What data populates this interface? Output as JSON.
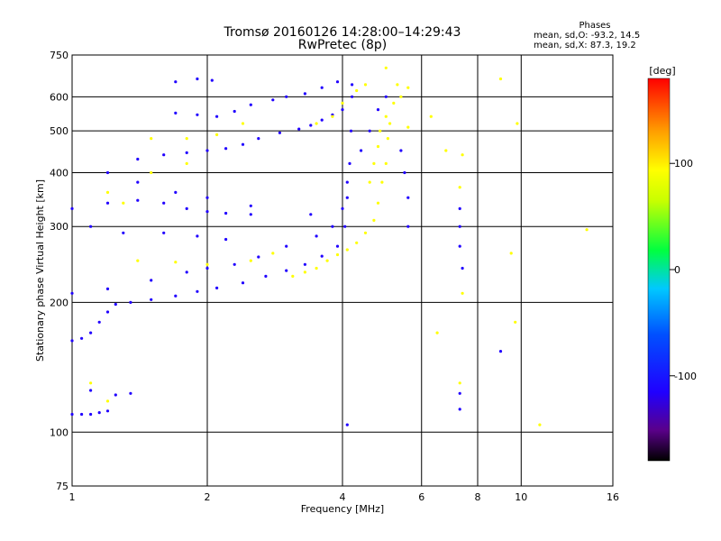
{
  "chart_data": {
    "type": "scatter",
    "title_line1": "Tromsø 20160126 14:28:00–14:29:43",
    "title_line2": "RwPretec (8p)",
    "xlabel": "Frequency [MHz]",
    "ylabel": "Stationary phase Virtual Height [km]",
    "x_scale": "log",
    "y_scale": "log",
    "xlim": [
      1,
      16
    ],
    "ylim": [
      75,
      750
    ],
    "x_ticks": [
      1,
      2,
      4,
      6,
      8,
      10,
      16
    ],
    "y_ticks": [
      75,
      100,
      200,
      300,
      400,
      500,
      600,
      750
    ],
    "grid": true,
    "phases_box": {
      "title": "Phases",
      "line_o": "mean, sd,O: -93.2, 14.5",
      "line_x": "mean, sd,X: 87.3, 19.2"
    },
    "colorbar": {
      "label": "[deg]",
      "range": [
        -180,
        180
      ],
      "ticks": [
        100,
        0,
        -100
      ],
      "colors": [
        "#000000",
        "#5a008a",
        "#2000ff",
        "#0050ff",
        "#00c8ff",
        "#00ff40",
        "#c8ff00",
        "#ffff00",
        "#ffa000",
        "#ff0000"
      ]
    },
    "series": [
      {
        "mode": "O",
        "phase": -100,
        "points": [
          [
            1.0,
            163
          ],
          [
            1.05,
            165
          ],
          [
            1.1,
            170
          ],
          [
            1.15,
            180
          ],
          [
            1.2,
            190
          ],
          [
            1.25,
            198
          ],
          [
            1.35,
            200
          ],
          [
            1.5,
            203
          ],
          [
            1.7,
            207
          ],
          [
            1.9,
            212
          ],
          [
            2.1,
            216
          ],
          [
            2.4,
            222
          ],
          [
            2.7,
            230
          ],
          [
            3.0,
            237
          ],
          [
            3.3,
            245
          ],
          [
            3.6,
            256
          ],
          [
            3.9,
            270
          ],
          [
            4.05,
            300
          ],
          [
            4.1,
            350
          ],
          [
            4.15,
            420
          ],
          [
            4.18,
            500
          ],
          [
            4.2,
            600
          ],
          [
            1.0,
            110
          ],
          [
            1.05,
            110
          ],
          [
            1.1,
            110
          ],
          [
            1.15,
            111
          ],
          [
            1.2,
            112
          ],
          [
            1.0,
            210
          ],
          [
            1.2,
            215
          ],
          [
            1.5,
            225
          ],
          [
            1.8,
            235
          ],
          [
            2.0,
            240
          ],
          [
            2.3,
            245
          ],
          [
            2.6,
            255
          ],
          [
            3.0,
            270
          ],
          [
            3.5,
            285
          ],
          [
            3.8,
            300
          ],
          [
            4.0,
            330
          ],
          [
            4.1,
            380
          ],
          [
            1.0,
            330
          ],
          [
            1.2,
            340
          ],
          [
            1.4,
            345
          ],
          [
            1.6,
            340
          ],
          [
            1.8,
            330
          ],
          [
            2.0,
            325
          ],
          [
            2.2,
            322
          ],
          [
            2.5,
            335
          ],
          [
            1.4,
            430
          ],
          [
            1.6,
            440
          ],
          [
            1.8,
            445
          ],
          [
            2.0,
            450
          ],
          [
            2.2,
            455
          ],
          [
            2.4,
            465
          ],
          [
            2.6,
            480
          ],
          [
            2.9,
            495
          ],
          [
            3.2,
            505
          ],
          [
            3.4,
            515
          ],
          [
            3.6,
            530
          ],
          [
            3.8,
            545
          ],
          [
            4.0,
            560
          ],
          [
            1.7,
            550
          ],
          [
            1.9,
            545
          ],
          [
            2.1,
            540
          ],
          [
            2.3,
            555
          ],
          [
            2.5,
            575
          ],
          [
            2.8,
            590
          ],
          [
            3.0,
            600
          ],
          [
            3.3,
            610
          ],
          [
            3.6,
            630
          ],
          [
            3.9,
            650
          ],
          [
            4.2,
            640
          ],
          [
            1.1,
            300
          ],
          [
            1.3,
            290
          ],
          [
            1.6,
            290
          ],
          [
            1.9,
            285
          ],
          [
            2.2,
            280
          ],
          [
            1.2,
            400
          ],
          [
            1.4,
            380
          ],
          [
            1.7,
            360
          ],
          [
            2.0,
            350
          ],
          [
            1.7,
            650
          ],
          [
            1.9,
            660
          ],
          [
            2.05,
            655
          ],
          [
            1.1,
            125
          ],
          [
            1.25,
            122
          ],
          [
            1.35,
            123
          ],
          [
            4.4,
            450
          ],
          [
            4.6,
            500
          ],
          [
            4.8,
            560
          ],
          [
            5.0,
            600
          ],
          [
            5.4,
            450
          ],
          [
            5.5,
            400
          ],
          [
            5.6,
            350
          ],
          [
            5.6,
            300
          ],
          [
            7.3,
            330
          ],
          [
            7.3,
            300
          ],
          [
            7.3,
            270
          ],
          [
            7.4,
            240
          ],
          [
            7.3,
            113
          ],
          [
            7.3,
            123
          ],
          [
            9.0,
            154
          ],
          [
            4.1,
            104
          ],
          [
            2.5,
            320
          ],
          [
            3.4,
            320
          ]
        ]
      },
      {
        "mode": "X",
        "phase": 100,
        "points": [
          [
            3.1,
            230
          ],
          [
            3.3,
            235
          ],
          [
            3.5,
            240
          ],
          [
            3.7,
            250
          ],
          [
            3.9,
            258
          ],
          [
            4.1,
            265
          ],
          [
            4.3,
            275
          ],
          [
            4.5,
            290
          ],
          [
            4.7,
            310
          ],
          [
            4.8,
            340
          ],
          [
            4.9,
            380
          ],
          [
            5.0,
            420
          ],
          [
            5.05,
            480
          ],
          [
            5.1,
            520
          ],
          [
            4.6,
            380
          ],
          [
            4.7,
            420
          ],
          [
            4.8,
            460
          ],
          [
            4.85,
            500
          ],
          [
            5.0,
            540
          ],
          [
            5.2,
            580
          ],
          [
            5.4,
            600
          ],
          [
            5.6,
            630
          ],
          [
            1.4,
            250
          ],
          [
            1.7,
            248
          ],
          [
            2.0,
            245
          ],
          [
            2.5,
            250
          ],
          [
            2.8,
            260
          ],
          [
            1.3,
            340
          ],
          [
            1.2,
            360
          ],
          [
            1.5,
            400
          ],
          [
            1.8,
            420
          ],
          [
            1.5,
            480
          ],
          [
            1.8,
            480
          ],
          [
            2.1,
            490
          ],
          [
            2.4,
            520
          ],
          [
            3.5,
            520
          ],
          [
            3.8,
            540
          ],
          [
            4.0,
            580
          ],
          [
            4.3,
            620
          ],
          [
            4.5,
            640
          ],
          [
            5.3,
            640
          ],
          [
            7.4,
            440
          ],
          [
            7.3,
            370
          ],
          [
            7.3,
            130
          ],
          [
            6.8,
            450
          ],
          [
            6.3,
            540
          ],
          [
            6.5,
            170
          ],
          [
            5.0,
            700
          ],
          [
            9.8,
            520
          ],
          [
            9.0,
            660
          ],
          [
            7.4,
            210
          ],
          [
            9.5,
            260
          ],
          [
            9.7,
            180
          ],
          [
            14.0,
            295
          ],
          [
            11.0,
            104
          ],
          [
            1.1,
            130
          ],
          [
            1.2,
            118
          ],
          [
            5.6,
            510
          ]
        ]
      }
    ]
  }
}
